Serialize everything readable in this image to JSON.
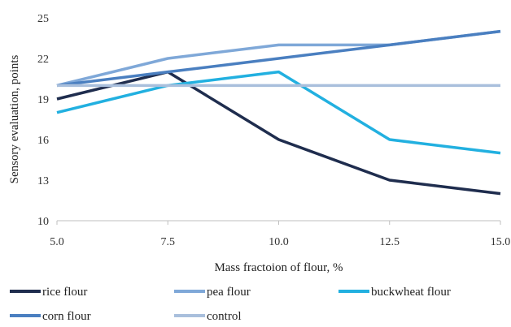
{
  "chart_data": {
    "type": "line",
    "title": "",
    "xlabel": "Mass fractoion of flour, %",
    "ylabel": "Sensory evaluation, points",
    "x": [
      5.0,
      7.5,
      10.0,
      12.5,
      15.0
    ],
    "x_tick_labels": [
      "5.0",
      "7.5",
      "10.0",
      "12.5",
      "15.0"
    ],
    "y_ticks": [
      10,
      13,
      16,
      19,
      22,
      25
    ],
    "y_tick_labels": [
      "10",
      "13",
      "16",
      "19",
      "22",
      "25"
    ],
    "xlim": [
      5.0,
      15.0
    ],
    "ylim": [
      10,
      25
    ],
    "grid": false,
    "legend_position": "bottom",
    "series": [
      {
        "name": "rice flour",
        "color": "#1f2d4e",
        "values": [
          19,
          21,
          16,
          13,
          12
        ]
      },
      {
        "name": "pea flour",
        "color": "#7fa8d8",
        "values": [
          20,
          22,
          23,
          23,
          24
        ]
      },
      {
        "name": "buckwheat flour",
        "color": "#22b0e0",
        "values": [
          18,
          20,
          21,
          16,
          15
        ]
      },
      {
        "name": "corn flour",
        "color": "#4a7fc0",
        "values": [
          20,
          21,
          22,
          23,
          24
        ]
      },
      {
        "name": "control",
        "color": "#a9bfdc",
        "values": [
          20,
          20,
          20,
          20,
          20
        ]
      }
    ]
  }
}
